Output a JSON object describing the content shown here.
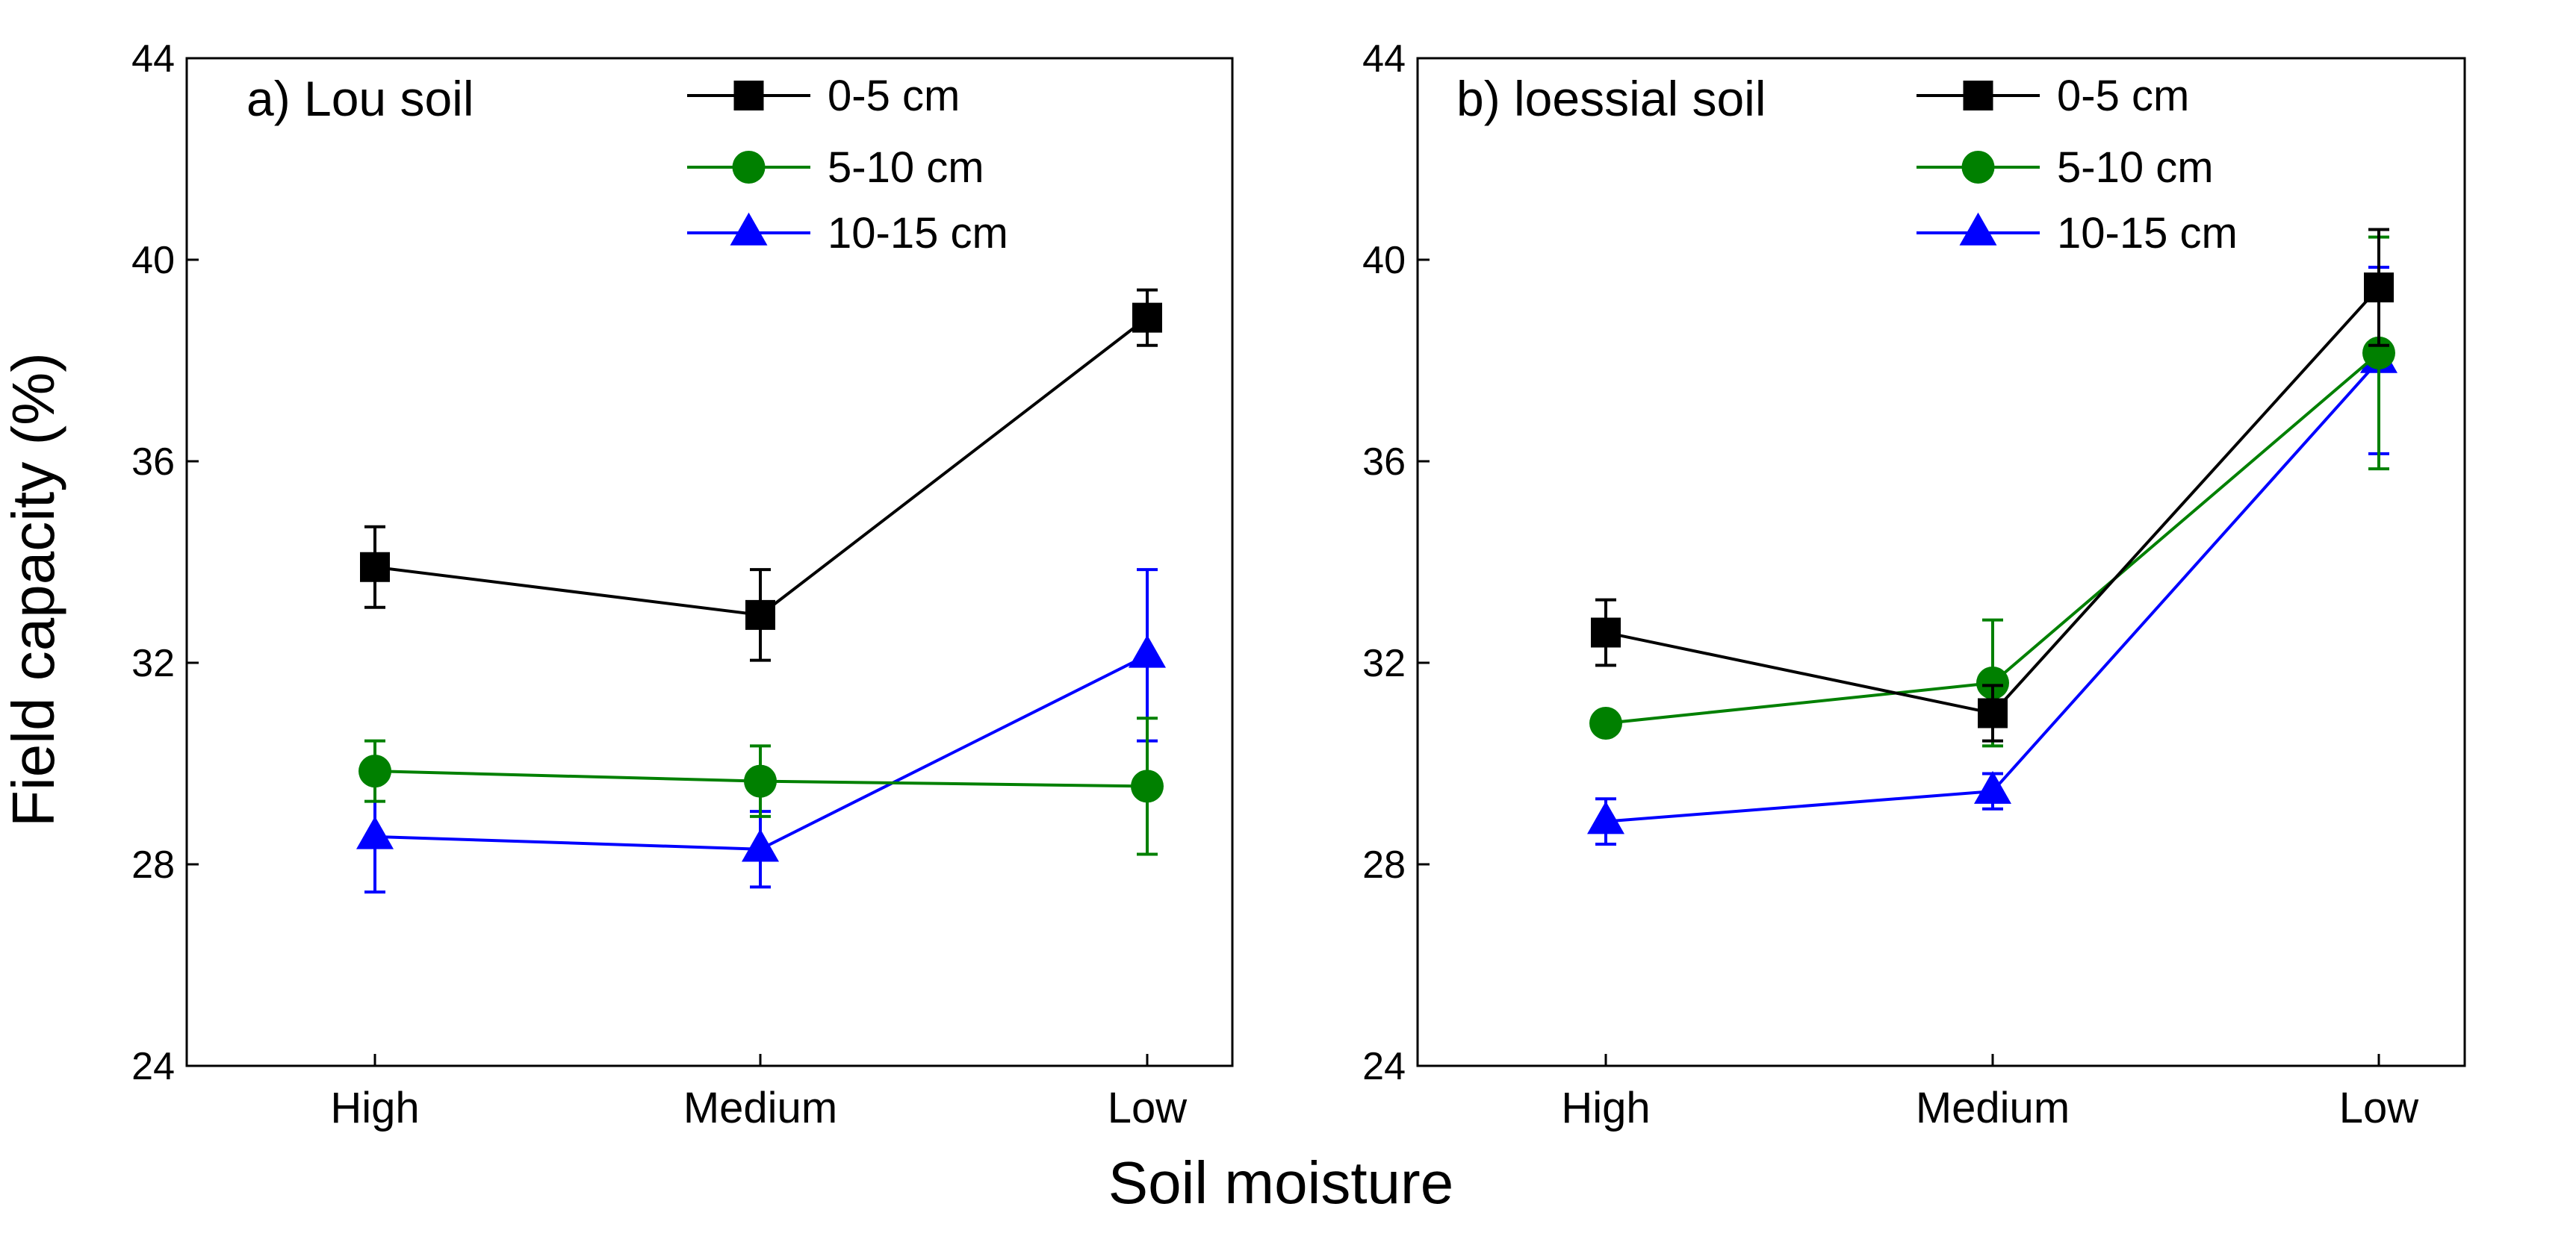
{
  "figure": {
    "ylabel": "Field capacity (%)",
    "xlabel": "Soil moisture"
  },
  "chart_data": [
    {
      "type": "line",
      "title": "a) Lou soil",
      "categories": [
        "High",
        "Medium",
        "Low"
      ],
      "ylim": [
        24,
        44
      ],
      "yticks": [
        24,
        28,
        32,
        36,
        40,
        44
      ],
      "ytick_labels": [
        "24",
        "28",
        "32",
        "36",
        "40",
        "44"
      ],
      "series": [
        {
          "name": "0-5 cm",
          "marker": "square",
          "color": "#000000",
          "values": [
            33.9,
            32.95,
            38.85
          ],
          "errors": [
            0.8,
            0.9,
            0.55
          ]
        },
        {
          "name": "5-10 cm",
          "marker": "circle",
          "color": "#008000",
          "values": [
            29.85,
            29.65,
            29.55
          ],
          "errors": [
            0.6,
            0.7,
            1.35
          ]
        },
        {
          "name": "10-15 cm",
          "marker": "triangle",
          "color": "#0000ff",
          "values": [
            28.55,
            28.3,
            32.15
          ],
          "errors": [
            1.1,
            0.75,
            1.7
          ]
        }
      ]
    },
    {
      "type": "line",
      "title": "b) loessial soil",
      "categories": [
        "High",
        "Medium",
        "Low"
      ],
      "ylim": [
        24,
        44
      ],
      "yticks": [
        24,
        28,
        32,
        36,
        40,
        44
      ],
      "ytick_labels": [
        "24",
        "28",
        "32",
        "36",
        "40",
        "44"
      ],
      "series": [
        {
          "name": "0-5 cm",
          "marker": "square",
          "color": "#000000",
          "values": [
            32.6,
            31.0,
            39.45
          ],
          "errors": [
            0.65,
            0.55,
            1.15
          ]
        },
        {
          "name": "5-10 cm",
          "marker": "circle",
          "color": "#008000",
          "values": [
            30.8,
            31.6,
            38.15
          ],
          "errors": [
            0.2,
            1.25,
            2.3
          ]
        },
        {
          "name": "10-15 cm",
          "marker": "triangle",
          "color": "#0000ff",
          "values": [
            28.85,
            29.45,
            38.0
          ],
          "errors": [
            0.45,
            0.35,
            1.85
          ]
        }
      ]
    }
  ]
}
